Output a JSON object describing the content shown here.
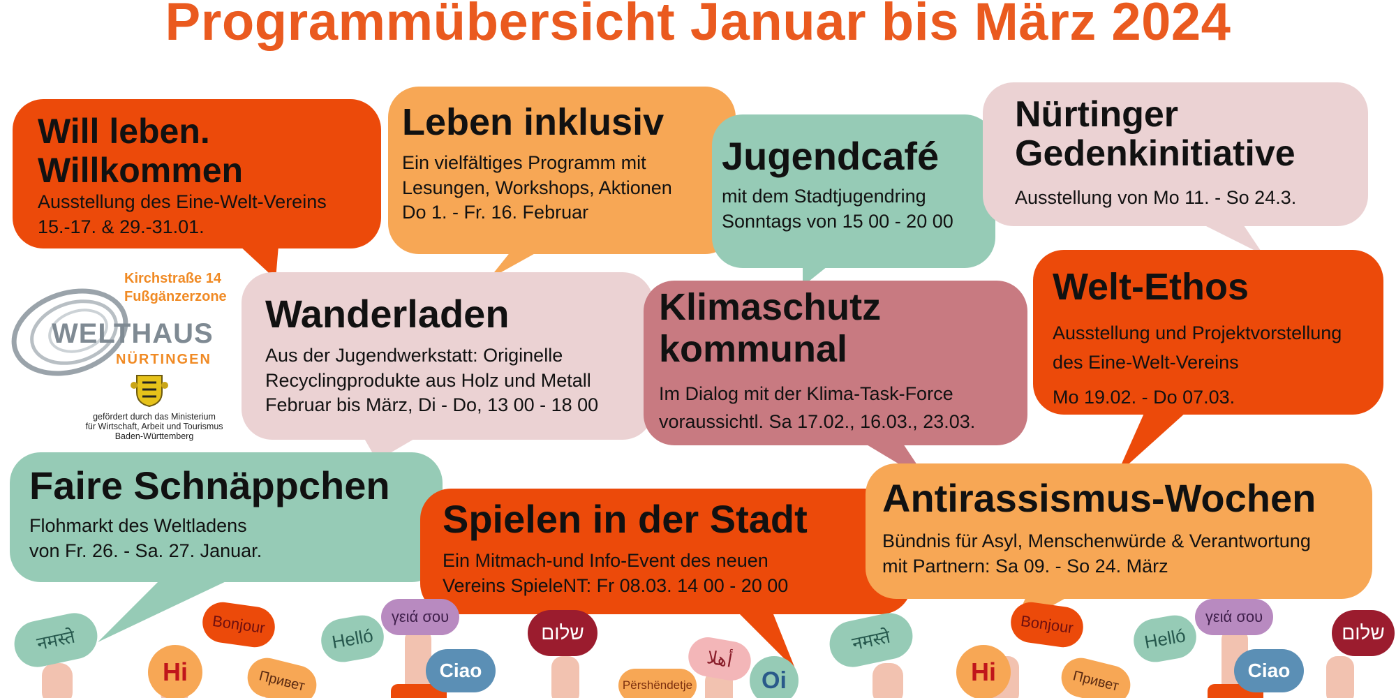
{
  "title": "Programmübersicht Januar bis März 2024",
  "events": [
    {
      "id": "will-leben",
      "title_lines": [
        "Will leben.",
        "Willkommen"
      ],
      "lines": [
        "Ausstellung des Eine-Welt-Vereins",
        "15.-17. & 29.-31.01."
      ]
    },
    {
      "id": "leben-inklusiv",
      "title_lines": [
        "Leben inklusiv"
      ],
      "lines": [
        "Ein vielfältiges Programm mit",
        "Lesungen, Workshops, Aktionen",
        "Do 1. - Fr. 16. Februar"
      ]
    },
    {
      "id": "jugendcafe",
      "title_lines": [
        "Jugendcafé"
      ],
      "lines": [
        "mit dem Stadtjugendring",
        "Sonntags von 15 00 - 20 00"
      ]
    },
    {
      "id": "nuertinger",
      "title_lines": [
        "Nürtinger",
        "Gedenkinitiative"
      ],
      "lines": [
        "Ausstellung von Mo 11. - So 24.3."
      ]
    },
    {
      "id": "wanderladen",
      "title_lines": [
        "Wanderladen"
      ],
      "lines": [
        "Aus der Jugendwerkstatt: Originelle",
        "Recyclingprodukte aus Holz und Metall",
        "Februar bis März, Di - Do, 13 00 - 18 00"
      ]
    },
    {
      "id": "klimaschutz",
      "title_lines": [
        "Klimaschutz",
        "kommunal"
      ],
      "lines": [
        "Im Dialog mit der Klima-Task-Force",
        "voraussichtl. Sa 17.02., 16.03., 23.03."
      ]
    },
    {
      "id": "welt-ethos",
      "title_lines": [
        "Welt-Ethos"
      ],
      "lines": [
        "Ausstellung und Projektvorstellung",
        "des Eine-Welt-Vereins",
        "Mo 19.02. - Do 07.03."
      ]
    },
    {
      "id": "faire",
      "title_lines": [
        "Faire Schnäppchen"
      ],
      "lines": [
        "Flohmarkt des Weltladens",
        "von Fr. 26. -  Sa. 27. Januar."
      ]
    },
    {
      "id": "spielen",
      "title_lines": [
        "Spielen in der Stadt"
      ],
      "lines": [
        "Ein Mitmach-und Info-Event des neuen",
        "Vereins SpieleNT: Fr 08.03.  14 00 - 20 00"
      ]
    },
    {
      "id": "antirassismus",
      "title_lines": [
        "Antirassismus-Wochen"
      ],
      "lines": [
        "Bündnis für Asyl, Menschenwürde & Verantwortung",
        "mit Partnern: Sa 09. - So 24. März"
      ]
    }
  ],
  "logo": {
    "address_line1": "Kirchstraße 14",
    "address_line2": "Fußgänzerzone",
    "name_main": "WELTHAUS",
    "name_sub": "NÜRTINGEN",
    "funding_lines": [
      "gefördert durch das Ministerium",
      "für Wirtschaft, Arbeit und Tourismus",
      "Baden-Württemberg"
    ]
  },
  "greetings": [
    "नमस्ते",
    "Hi",
    "Bonjour",
    "Привет",
    "Helló",
    "γειά σου",
    "Ciao",
    "שלום",
    "أهلا",
    "Përshëndetje",
    "Oi",
    "नमस्ते",
    "Hi",
    "Bonjour",
    "Привет",
    "Helló",
    "γειά σου",
    "Ciao",
    "שלום"
  ],
  "colors": {
    "title": "#ea5a1f",
    "orange": "#ec4a0a",
    "apricot": "#f7a755",
    "mint": "#96cbb6",
    "pink": "#ebd2d3",
    "rose": "#c87a81",
    "logo_gray": "#7f8a93",
    "logo_orange": "#f08a24"
  }
}
